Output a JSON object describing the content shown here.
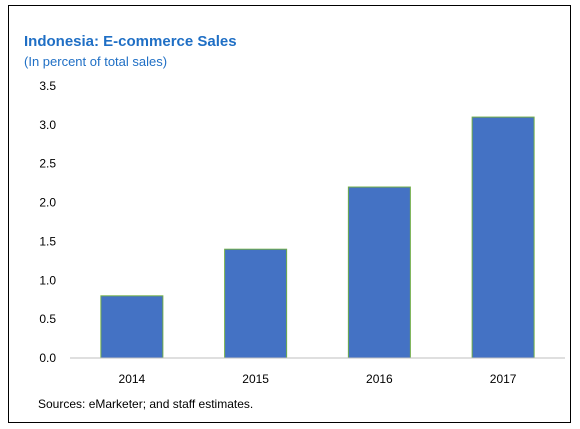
{
  "chart_data": {
    "type": "bar",
    "title": "Indonesia: E-commerce Sales",
    "subtitle": "(In percent of total sales)",
    "categories": [
      "2014",
      "2015",
      "2016",
      "2017"
    ],
    "values": [
      0.8,
      1.4,
      2.2,
      3.1
    ],
    "ylim": [
      0,
      3.5
    ],
    "yticks": [
      "0.0",
      "0.5",
      "1.0",
      "1.5",
      "2.0",
      "2.5",
      "3.0",
      "3.5"
    ],
    "xlabel": "",
    "ylabel": "",
    "grid": false,
    "legend": "none",
    "bar_color": "#4472c4",
    "bar_edge_color": "#70ad47",
    "title_color": "#1f6fc5",
    "source": "Sources: eMarketer; and staff estimates."
  }
}
